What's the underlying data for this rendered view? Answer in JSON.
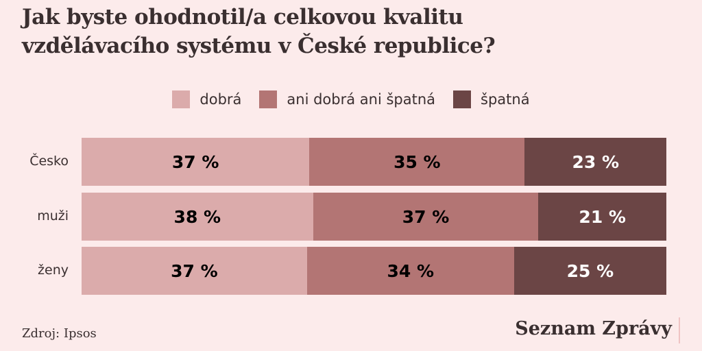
{
  "chart_data": {
    "type": "bar",
    "orientation": "horizontal",
    "stacked": true,
    "title": "Jak byste ohodnotil/a celkovou kvalitu vzdělávacího systému v České republice?",
    "categories": [
      "Česko",
      "muži",
      "ženy"
    ],
    "series": [
      {
        "name": "dobrá",
        "values": [
          37,
          38,
          37
        ],
        "color": "#dbabab"
      },
      {
        "name": "ani dobrá ani špatná",
        "values": [
          35,
          37,
          34
        ],
        "color": "#b37574"
      },
      {
        "name": "špatná",
        "values": [
          23,
          21,
          25
        ],
        "color": "#6b4545"
      }
    ],
    "value_suffix": " %",
    "legend_position": "top",
    "grid": false
  },
  "source": "Zdroj: Ipsos",
  "logo": "Seznam Zprávy",
  "colors": {
    "background": "#fcebeb",
    "text": "#3a2f30"
  }
}
